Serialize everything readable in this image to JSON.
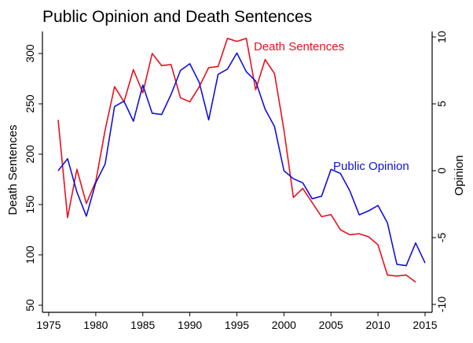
{
  "chart_data": {
    "type": "line",
    "title": "Public Opinion and Death Sentences",
    "xlabel": "",
    "ylabel": "Death Sentences",
    "y2label": "Opinion",
    "xlim": [
      1976,
      2015
    ],
    "ylim": [
      50,
      325
    ],
    "y2lim": [
      -10,
      10
    ],
    "xticks": [
      1975,
      1980,
      1985,
      1990,
      1995,
      2000,
      2005,
      2010,
      2015
    ],
    "yticks": [
      50,
      100,
      150,
      200,
      250,
      300
    ],
    "y2ticks": [
      -10,
      -5,
      0,
      5,
      10
    ],
    "series": [
      {
        "name": "Death Sentences",
        "axis": "left",
        "color": "#e8101e",
        "x": [
          1976,
          1977,
          1978,
          1979,
          1980,
          1981,
          1982,
          1983,
          1984,
          1985,
          1986,
          1987,
          1988,
          1989,
          1990,
          1991,
          1992,
          1993,
          1994,
          1995,
          1996,
          1997,
          1998,
          1999,
          2000,
          2001,
          2002,
          2003,
          2004,
          2005,
          2006,
          2007,
          2008,
          2009,
          2010,
          2011,
          2012,
          2013,
          2014
        ],
        "values": [
          234,
          137,
          185,
          151,
          173,
          224,
          267,
          252,
          284,
          261,
          300,
          288,
          289,
          256,
          252,
          267,
          286,
          287,
          315,
          312,
          315,
          264,
          294,
          280,
          224,
          157,
          166,
          152,
          138,
          140,
          125,
          120,
          121,
          118,
          110,
          80,
          79,
          80,
          73
        ]
      },
      {
        "name": "Public Opinion",
        "axis": "right",
        "color": "#1010dd",
        "x": [
          1976,
          1977,
          1978,
          1979,
          1980,
          1981,
          1982,
          1983,
          1984,
          1985,
          1986,
          1987,
          1988,
          1989,
          1990,
          1991,
          1992,
          1993,
          1994,
          1995,
          1996,
          1997,
          1998,
          1999,
          2000,
          2001,
          2002,
          2003,
          2004,
          2005,
          2006,
          2007,
          2008,
          2009,
          2010,
          2011,
          2012,
          2013,
          2014,
          2015
        ],
        "values": [
          0.0,
          0.9,
          -1.6,
          -3.4,
          -0.9,
          0.5,
          4.8,
          5.2,
          3.7,
          6.4,
          4.3,
          4.2,
          5.7,
          7.5,
          8.0,
          6.6,
          3.8,
          7.2,
          7.6,
          8.8,
          7.4,
          6.7,
          4.6,
          3.3,
          0.0,
          -0.6,
          -0.9,
          -2.1,
          -1.9,
          0.1,
          -0.2,
          -1.5,
          -3.3,
          -3.0,
          -2.6,
          -3.9,
          -7.0,
          -7.1,
          -5.4,
          -6.9
        ]
      }
    ],
    "annotations": [
      {
        "text": "Death Sentences",
        "series": 0
      },
      {
        "text": "Public Opinion",
        "series": 1
      }
    ],
    "grid": false,
    "legend": "none"
  }
}
